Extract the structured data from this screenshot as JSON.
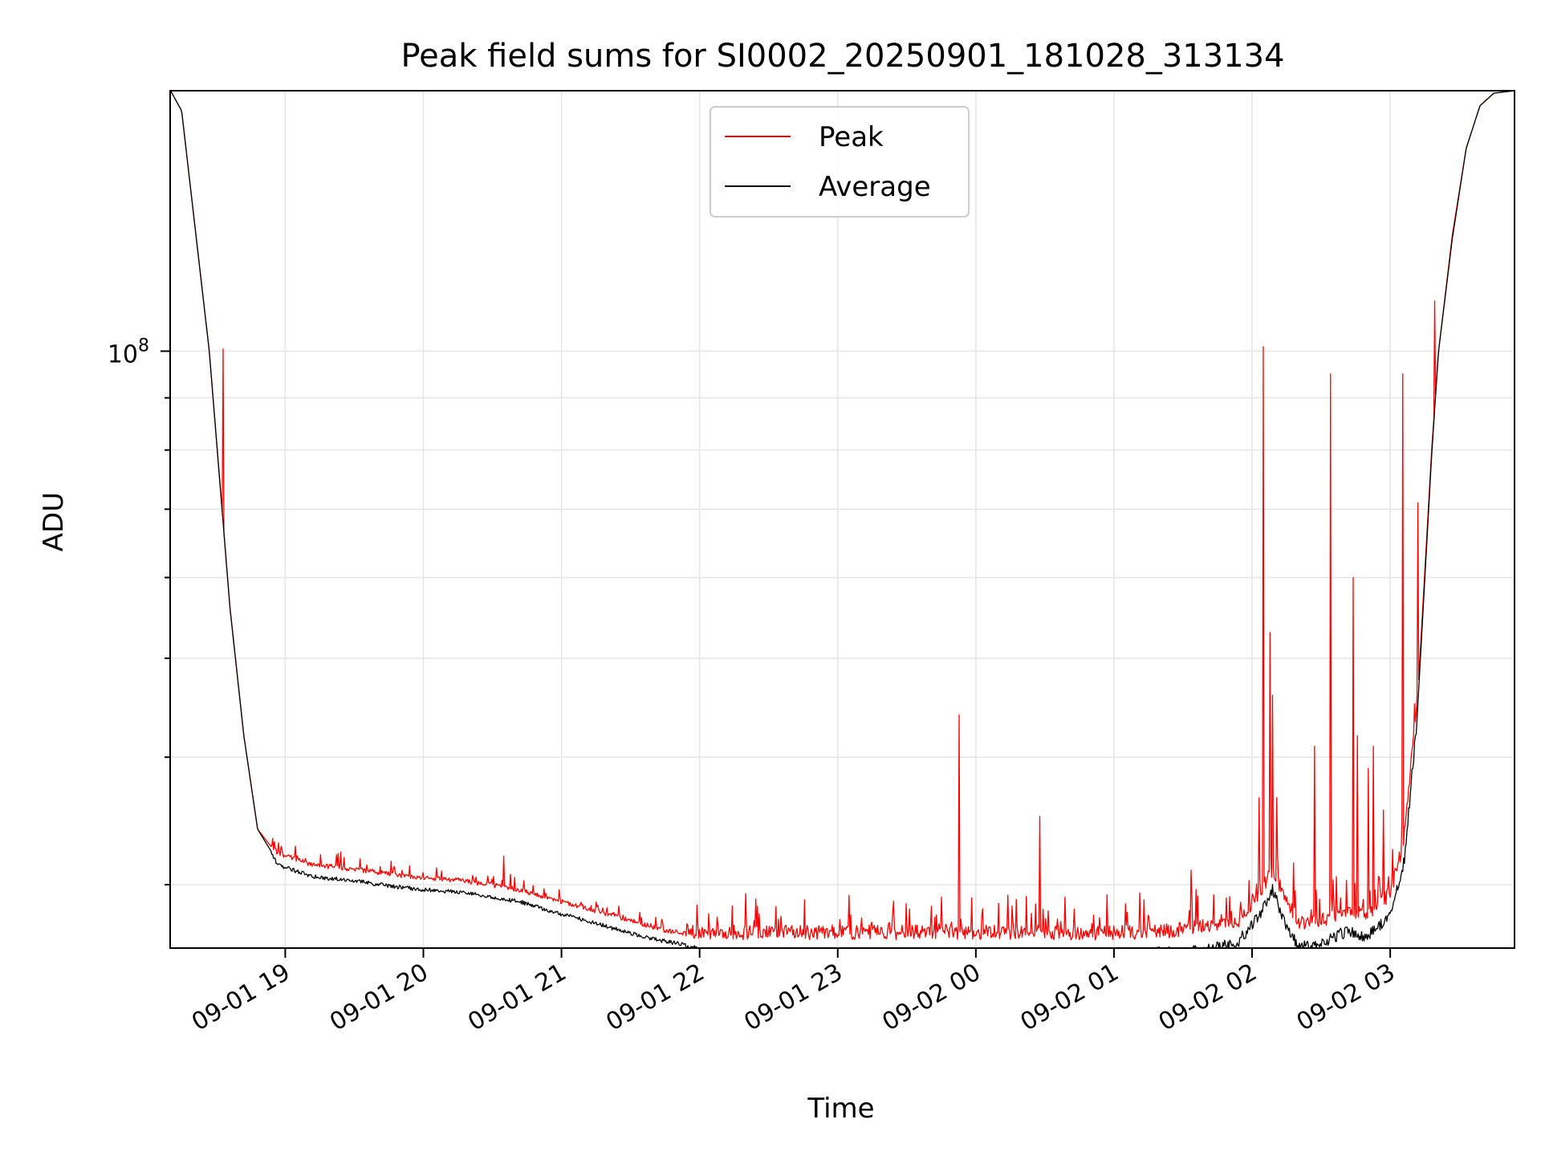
{
  "chart_data": {
    "type": "line",
    "title": "Peak field sums for SI0002_20250901_181028_313134",
    "xlabel": "Time",
    "ylabel": "ADU",
    "yscale": "log",
    "ylim": [
      26000000,
      180000000
    ],
    "xlim": [
      "09-01 18:10",
      "09-02 03:54"
    ],
    "grid": true,
    "legend_position": "top-center",
    "x_ticks": [
      {
        "label": "09-01 19",
        "hours": 19
      },
      {
        "label": "09-01 20",
        "hours": 20
      },
      {
        "label": "09-01 21",
        "hours": 21
      },
      {
        "label": "09-01 22",
        "hours": 22
      },
      {
        "label": "09-01 23",
        "hours": 23
      },
      {
        "label": "09-02 00",
        "hours": 24
      },
      {
        "label": "09-02 01",
        "hours": 25
      },
      {
        "label": "09-02 02",
        "hours": 26
      },
      {
        "label": "09-02 03",
        "hours": 27
      }
    ],
    "y_ticks": [
      {
        "label_base": "10",
        "label_exp": "8",
        "value": 100000000
      }
    ],
    "series": [
      {
        "name": "Peak",
        "color": "#ff0000",
        "x_hours": [
          18.17,
          18.25,
          18.45,
          18.6,
          18.7,
          18.8,
          18.95,
          19.2,
          19.5,
          19.8,
          20.0,
          20.3,
          20.5,
          20.7,
          20.95,
          21.1,
          21.3,
          21.5,
          21.7,
          21.9,
          22.0,
          22.5,
          23.0,
          23.4,
          23.8,
          24.2,
          24.6,
          24.8,
          25.1,
          25.4,
          25.7,
          25.9,
          26.05,
          26.15,
          26.25,
          26.35,
          26.5,
          26.6,
          26.7,
          26.8,
          26.9,
          27.0,
          27.1,
          27.2,
          27.3,
          27.35,
          27.45,
          27.55,
          27.65,
          27.75,
          27.9
        ],
        "values": [
          180000000,
          172000000,
          100000000,
          56000000,
          42000000,
          34000000,
          32000000,
          31200000,
          30900000,
          30500000,
          30300000,
          30100000,
          29800000,
          29500000,
          28800000,
          28500000,
          28000000,
          27500000,
          27000000,
          26700000,
          26500000,
          26500000,
          26500000,
          26500000,
          26500000,
          26500000,
          26500000,
          26400000,
          26500000,
          26600000,
          26900000,
          27200000,
          29000000,
          30500000,
          28400000,
          27000000,
          27200000,
          27500000,
          28000000,
          27600000,
          28000000,
          29000000,
          32500000,
          46000000,
          80000000,
          100000000,
          130000000,
          158000000,
          174000000,
          179000000,
          180000000
        ]
      },
      {
        "name": "Average",
        "color": "#000000",
        "x_hours": [
          18.17,
          18.25,
          18.45,
          18.6,
          18.7,
          18.8,
          18.95,
          19.2,
          19.5,
          19.8,
          20.0,
          20.3,
          20.5,
          20.7,
          20.95,
          21.1,
          21.3,
          21.5,
          21.7,
          21.9,
          22.0,
          22.5,
          23.0,
          23.4,
          23.8,
          24.2,
          24.6,
          24.8,
          25.1,
          25.4,
          25.7,
          25.9,
          26.05,
          26.15,
          26.25,
          26.35,
          26.5,
          26.6,
          26.7,
          26.8,
          26.9,
          27.0,
          27.1,
          27.2,
          27.3,
          27.35,
          27.45,
          27.55,
          27.65,
          27.75,
          27.9
        ],
        "values": [
          180000000,
          172000000,
          100000000,
          56000000,
          42000000,
          34000000,
          31500000,
          30700000,
          30400000,
          30000000,
          29800000,
          29600000,
          29300000,
          29000000,
          28300000,
          28000000,
          27500000,
          27000000,
          26600000,
          26300000,
          26100000,
          26000000,
          26000000,
          26000000,
          26000000,
          26000000,
          26000000,
          25900000,
          26000000,
          26100000,
          26300000,
          26700000,
          28400000,
          30100000,
          27600000,
          26400000,
          26700000,
          27000000,
          27500000,
          27000000,
          27500000,
          28500000,
          32000000,
          45000000,
          79000000,
          100000000,
          129000000,
          158000000,
          174000000,
          179000000,
          180000000
        ]
      }
    ],
    "spikes": [
      {
        "x_hours": 18.55,
        "value": 100500000
      },
      {
        "x_hours": 19.4,
        "value": 32300000
      },
      {
        "x_hours": 20.58,
        "value": 32000000
      },
      {
        "x_hours": 23.52,
        "value": 28400000
      },
      {
        "x_hours": 23.88,
        "value": 44000000
      },
      {
        "x_hours": 24.23,
        "value": 29300000
      },
      {
        "x_hours": 24.46,
        "value": 35000000
      },
      {
        "x_hours": 25.56,
        "value": 31000000
      },
      {
        "x_hours": 26.05,
        "value": 36500000
      },
      {
        "x_hours": 26.08,
        "value": 101000000
      },
      {
        "x_hours": 26.13,
        "value": 53000000
      },
      {
        "x_hours": 26.15,
        "value": 46000000
      },
      {
        "x_hours": 26.18,
        "value": 36500000
      },
      {
        "x_hours": 26.3,
        "value": 31500000
      },
      {
        "x_hours": 26.45,
        "value": 41000000
      },
      {
        "x_hours": 26.57,
        "value": 95000000
      },
      {
        "x_hours": 26.73,
        "value": 60000000
      },
      {
        "x_hours": 26.76,
        "value": 42000000
      },
      {
        "x_hours": 26.84,
        "value": 39000000
      },
      {
        "x_hours": 26.88,
        "value": 41000000
      },
      {
        "x_hours": 26.95,
        "value": 35500000
      },
      {
        "x_hours": 27.09,
        "value": 95000000
      },
      {
        "x_hours": 27.2,
        "value": 71000000
      },
      {
        "x_hours": 27.32,
        "value": 112000000
      }
    ]
  }
}
